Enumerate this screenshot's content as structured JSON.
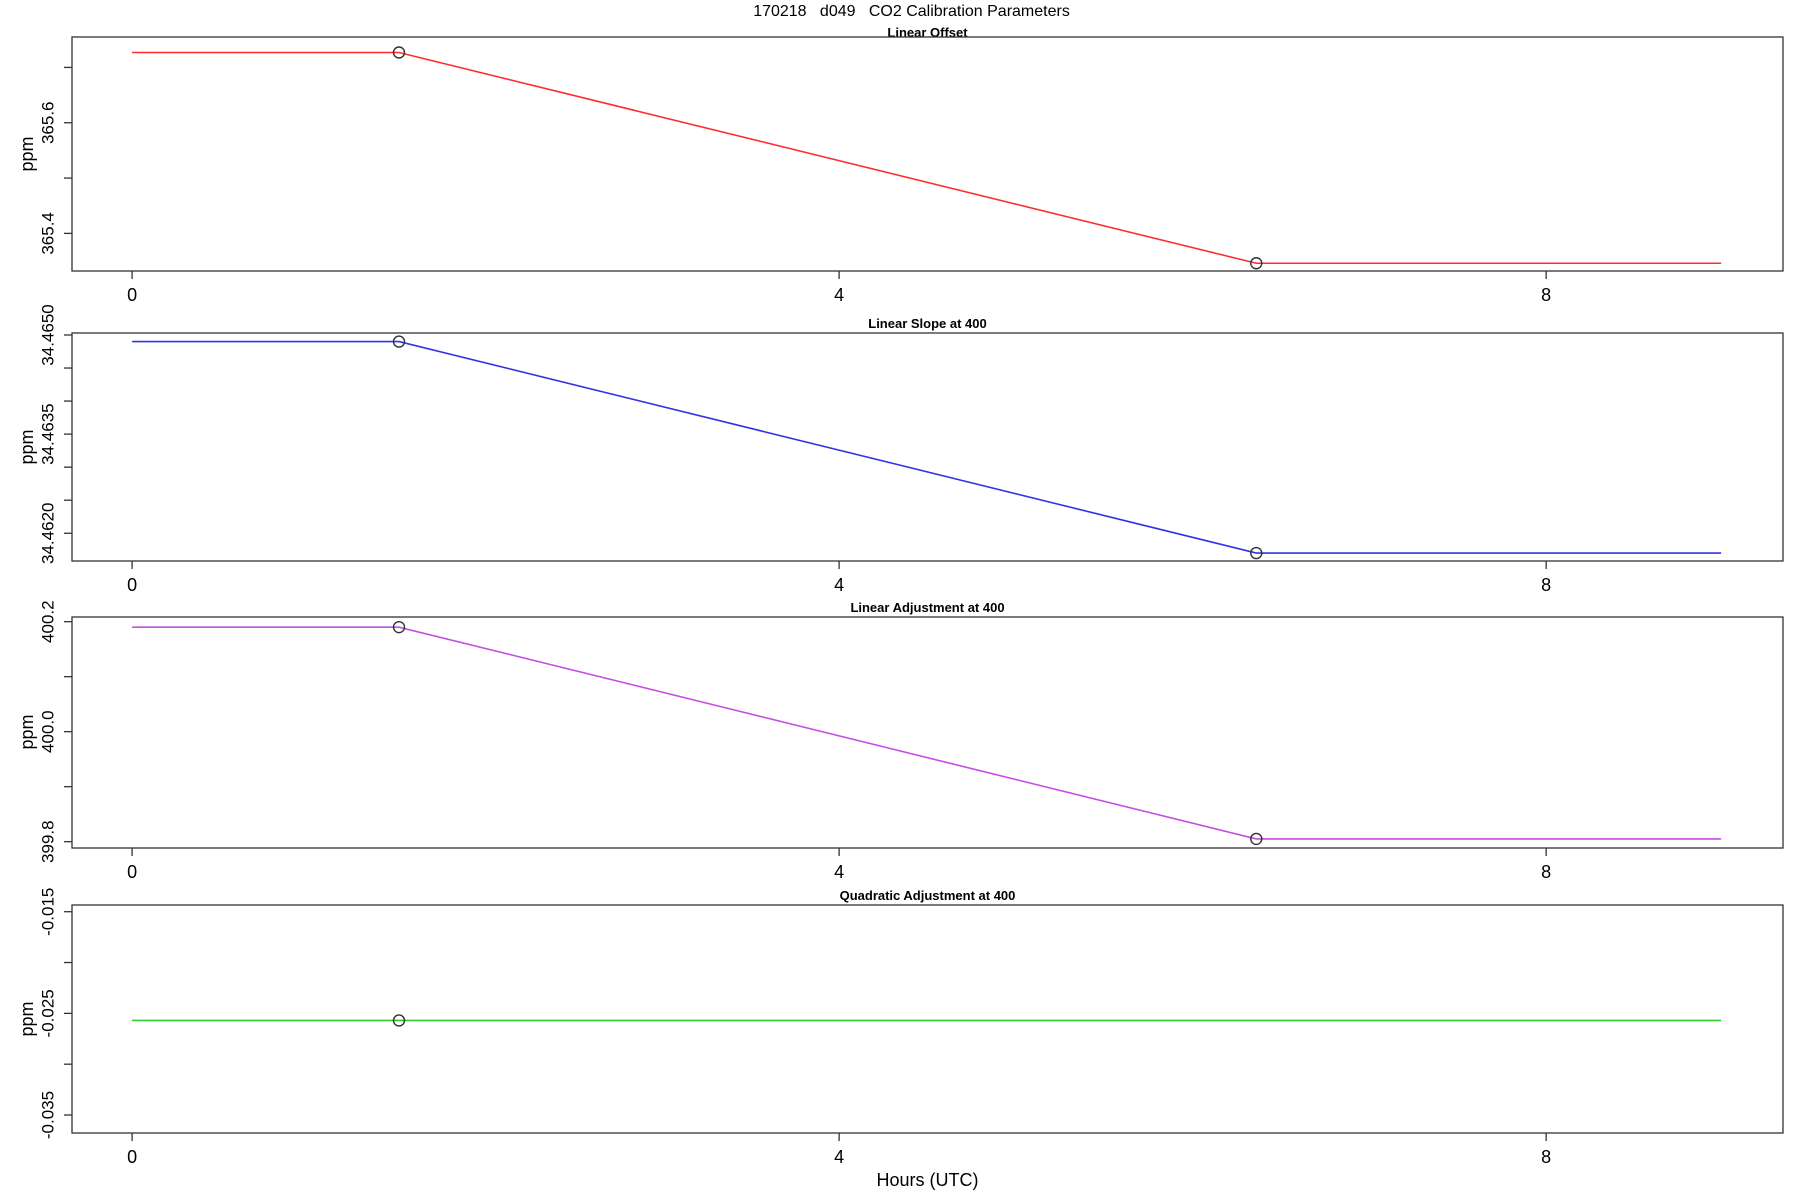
{
  "main_title": "170218   d049   CO2 Calibration Parameters",
  "x_axis": {
    "label": "Hours (UTC)",
    "lim": [
      -0.34,
      9.34
    ],
    "ticks": [
      {
        "v": 0,
        "label": "0"
      },
      {
        "v": 4,
        "label": "4"
      },
      {
        "v": 8,
        "label": "8"
      }
    ]
  },
  "style": {
    "axis_color": "#333333",
    "marker_color": "#333333"
  },
  "chart_data": [
    {
      "type": "line",
      "title": "Linear Offset",
      "ylabel": "ppm",
      "color": "#FF2D2D",
      "x": [
        0,
        1.51,
        6.36,
        8.99
      ],
      "y": [
        365.727,
        365.727,
        365.346,
        365.346
      ],
      "markers": [
        [
          1.51,
          365.727
        ],
        [
          6.36,
          365.346
        ]
      ],
      "ylim": [
        365.332,
        365.755
      ],
      "yticks": [
        {
          "v": 365.4,
          "label": "365.4"
        },
        {
          "v": 365.6,
          "label": "365.6"
        }
      ],
      "yticks_minor": [
        365.5,
        365.7
      ]
    },
    {
      "type": "line",
      "title": "Linear Slope at 400",
      "ylabel": "ppm",
      "color": "#3333E6",
      "x": [
        0,
        1.51,
        6.36,
        8.99
      ],
      "y": [
        34.4649,
        34.4649,
        34.4617,
        34.4617
      ],
      "markers": [
        [
          1.51,
          34.4649
        ],
        [
          6.36,
          34.4617
        ]
      ],
      "ylim": [
        34.46158,
        34.46503
      ],
      "yticks": [
        {
          "v": 34.462,
          "label": "34.4620"
        },
        {
          "v": 34.4635,
          "label": "34.4635"
        },
        {
          "v": 34.465,
          "label": "34.4650"
        }
      ],
      "yticks_minor": [
        34.4625,
        34.463,
        34.464,
        34.4645
      ]
    },
    {
      "type": "line",
      "title": "Linear Adjustment at 400",
      "ylabel": "ppm",
      "color": "#C44FE0",
      "x": [
        0,
        1.51,
        6.36,
        8.99
      ],
      "y": [
        400.19,
        400.19,
        399.805,
        399.805
      ],
      "markers": [
        [
          1.51,
          400.19
        ],
        [
          6.36,
          399.805
        ]
      ],
      "ylim": [
        399.7885,
        400.2085
      ],
      "yticks": [
        {
          "v": 399.8,
          "label": "399.8"
        },
        {
          "v": 400.0,
          "label": "400.0"
        },
        {
          "v": 400.2,
          "label": "400.2"
        }
      ],
      "yticks_minor": [
        399.9,
        400.1
      ]
    },
    {
      "type": "line",
      "title": "Quadratic Adjustment at 400",
      "ylabel": "ppm",
      "color": "#2ECC2E",
      "x": [
        0,
        1.51,
        6.36,
        8.99
      ],
      "y": [
        -0.0257,
        -0.0257,
        -0.0257,
        -0.0257
      ],
      "markers": [
        [
          1.51,
          -0.0257
        ]
      ],
      "ylim": [
        -0.03677,
        -0.01434
      ],
      "yticks": [
        {
          "v": -0.035,
          "label": "-0.035"
        },
        {
          "v": -0.025,
          "label": "-0.025"
        },
        {
          "v": -0.015,
          "label": "-0.015"
        }
      ],
      "yticks_minor": [
        -0.03,
        -0.02
      ]
    }
  ]
}
